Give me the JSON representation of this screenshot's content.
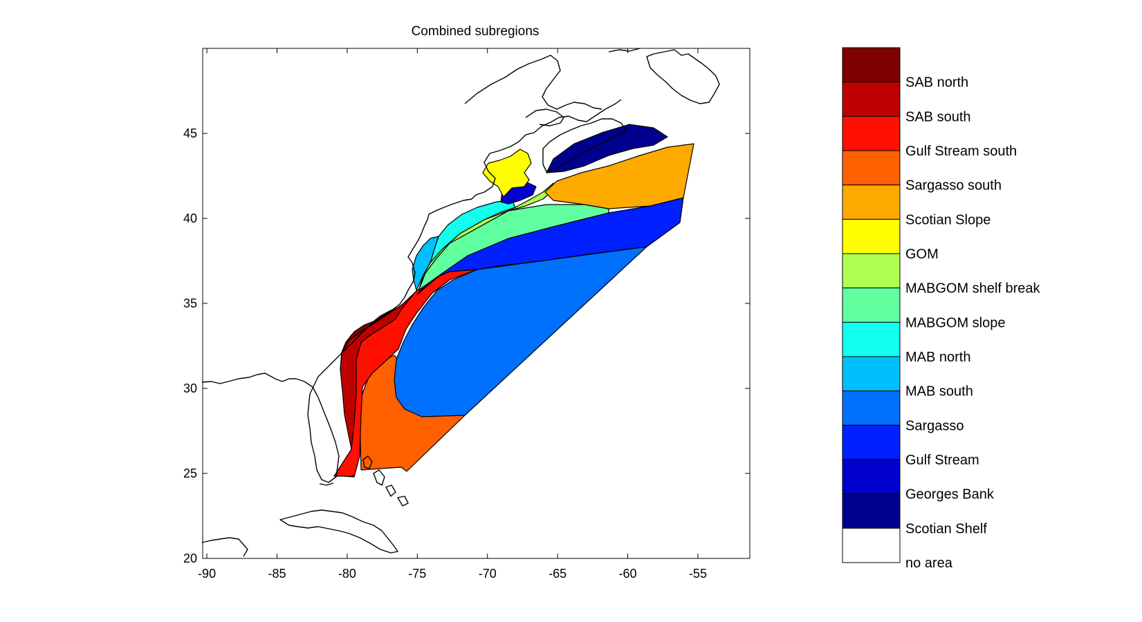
{
  "map": {
    "title": "Combined subregions",
    "x_ticks": [
      "-90",
      "-85",
      "-80",
      "-75",
      "-70",
      "-65",
      "-60",
      "-55"
    ],
    "y_ticks": [
      "20",
      "25",
      "30",
      "35",
      "40",
      "45"
    ],
    "x_tick_values": [
      -90,
      -85,
      -80,
      -75,
      -70,
      -65,
      -60,
      -55
    ],
    "y_tick_values": [
      20,
      25,
      30,
      35,
      40,
      45
    ],
    "lon_range": [
      -90.3,
      -51.3
    ],
    "lat_range": [
      20,
      50
    ],
    "regions": [
      {
        "name": "SAB north",
        "color": "#7f0000"
      },
      {
        "name": "SAB south",
        "color": "#bf0000"
      },
      {
        "name": "Gulf Stream south",
        "color": "#ff1000"
      },
      {
        "name": "Sargasso south",
        "color": "#ff6000"
      },
      {
        "name": "Scotian Slope",
        "color": "#ffaa00"
      },
      {
        "name": "GOM",
        "color": "#ffff00"
      },
      {
        "name": "MABGOM shelf break",
        "color": "#afff50"
      },
      {
        "name": "MABGOM slope",
        "color": "#60ff9f"
      },
      {
        "name": "MAB north",
        "color": "#10ffef"
      },
      {
        "name": "MAB south",
        "color": "#00bfff"
      },
      {
        "name": "Sargasso",
        "color": "#0070ff"
      },
      {
        "name": "Gulf Stream",
        "color": "#0020ff"
      },
      {
        "name": "Georges Bank",
        "color": "#0000cf"
      },
      {
        "name": "Scotian Shelf",
        "color": "#00008f"
      },
      {
        "name": "no area",
        "color": "#ffffff"
      }
    ]
  }
}
